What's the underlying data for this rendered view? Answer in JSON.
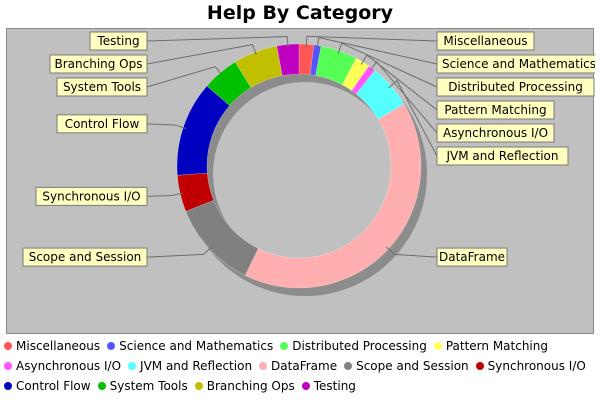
{
  "chart_data": {
    "type": "pie",
    "donut": true,
    "title": "Help By Category",
    "legend_position": "bottom",
    "categories": [
      "Miscellaneous",
      "Science and Mathematics",
      "Distributed Processing",
      "Pattern Matching",
      "Asynchronous I/O",
      "JVM and Reflection",
      "DataFrame",
      "Scope and Session",
      "Synchronous I/O",
      "Control Flow",
      "System Tools",
      "Branching Ops",
      "Testing"
    ],
    "values": [
      2,
      1,
      5,
      2,
      1,
      6,
      42,
      12,
      5,
      13,
      5,
      6,
      3
    ],
    "colors": [
      "#ff5555",
      "#5555ff",
      "#55ff55",
      "#ffff55",
      "#ff55ff",
      "#55ffff",
      "#ffafaf",
      "#808080",
      "#c00000",
      "#0000c0",
      "#00c000",
      "#c0c000",
      "#c000c0"
    ],
    "background": "#c0c0c0"
  }
}
